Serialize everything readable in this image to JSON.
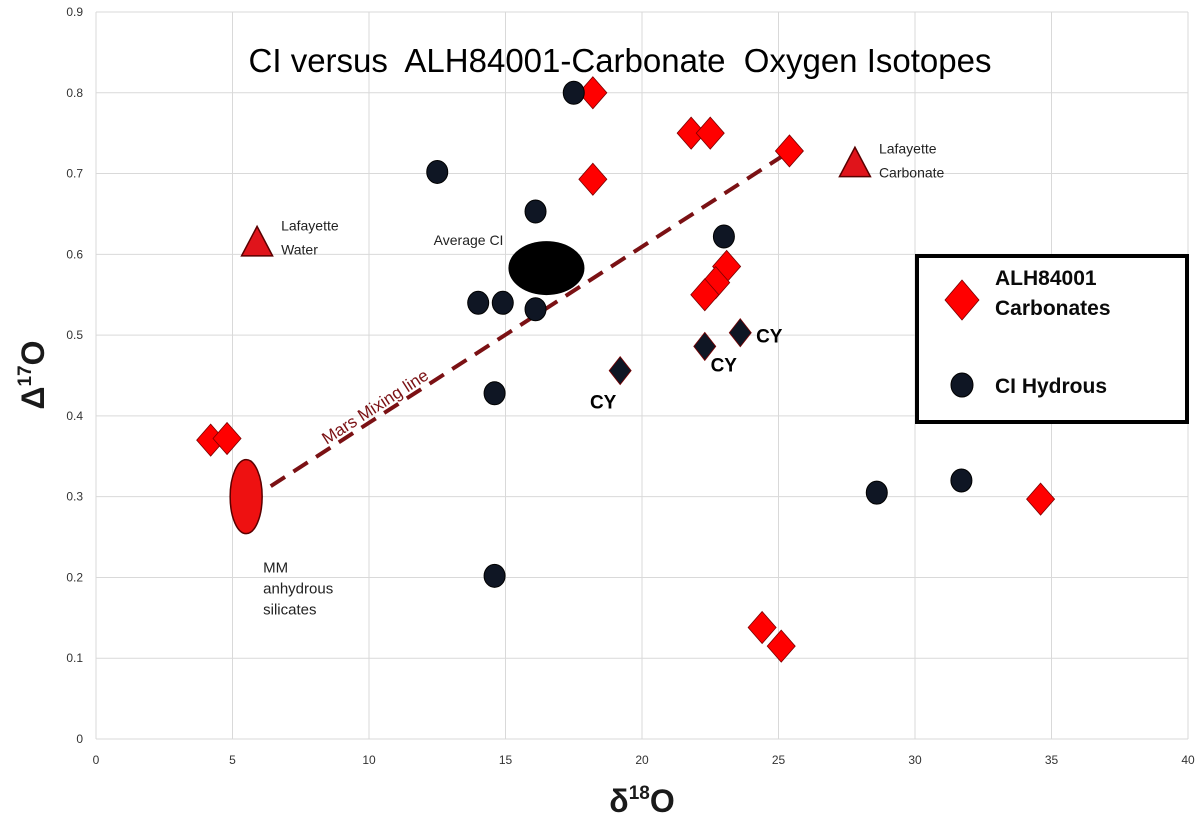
{
  "chart_data": {
    "type": "scatter",
    "title": "CI versus  ALH84001-Carbonate  Oxygen Isotopes",
    "xlabel": {
      "base": "δ",
      "sup": "18",
      "tail": "O"
    },
    "ylabel": {
      "base": "Δ",
      "sup": "17",
      "tail": "O"
    },
    "xlim": [
      0,
      40
    ],
    "ylim": [
      0,
      0.9
    ],
    "x_ticks": [
      0,
      5,
      10,
      15,
      20,
      25,
      30,
      35,
      40
    ],
    "y_ticks": [
      0,
      0.1,
      0.2,
      0.3,
      0.4,
      0.5,
      0.6,
      0.7,
      0.8,
      0.9
    ],
    "colors": {
      "carbonate": "#ff0000",
      "hydrous": "#0f1624",
      "cy": "#0f1624",
      "mixing_line": "#7b1114",
      "triangle": "#e0141b",
      "mm_ellipse": "#ee1111"
    },
    "series": [
      {
        "name": "ALH84001 Carbonates",
        "marker": "diamond",
        "points": [
          {
            "x": 18.2,
            "y": 0.8
          },
          {
            "x": 21.8,
            "y": 0.75
          },
          {
            "x": 22.5,
            "y": 0.75
          },
          {
            "x": 25.4,
            "y": 0.728
          },
          {
            "x": 18.2,
            "y": 0.693
          },
          {
            "x": 23.1,
            "y": 0.585
          },
          {
            "x": 22.7,
            "y": 0.565
          },
          {
            "x": 22.3,
            "y": 0.55
          },
          {
            "x": 4.2,
            "y": 0.37
          },
          {
            "x": 4.8,
            "y": 0.372
          },
          {
            "x": 34.6,
            "y": 0.297
          },
          {
            "x": 24.4,
            "y": 0.138
          },
          {
            "x": 25.1,
            "y": 0.115
          }
        ]
      },
      {
        "name": "CI Hydrous",
        "marker": "circle",
        "points": [
          {
            "x": 17.5,
            "y": 0.8
          },
          {
            "x": 12.5,
            "y": 0.702
          },
          {
            "x": 16.1,
            "y": 0.653
          },
          {
            "x": 23.0,
            "y": 0.622
          },
          {
            "x": 14.0,
            "y": 0.54
          },
          {
            "x": 14.9,
            "y": 0.54
          },
          {
            "x": 16.1,
            "y": 0.532
          },
          {
            "x": 14.6,
            "y": 0.428
          },
          {
            "x": 28.6,
            "y": 0.305
          },
          {
            "x": 31.7,
            "y": 0.32
          },
          {
            "x": 14.6,
            "y": 0.202
          }
        ]
      },
      {
        "name": "CY",
        "marker": "small-diamond",
        "points": [
          {
            "x": 19.2,
            "y": 0.456,
            "label": "CY"
          },
          {
            "x": 22.3,
            "y": 0.486,
            "label": "CY"
          },
          {
            "x": 23.6,
            "y": 0.503,
            "label": "CY"
          }
        ]
      }
    ],
    "special_points": [
      {
        "name": "Average CI",
        "marker": "large-ellipse",
        "x": 16.5,
        "y": 0.583,
        "label": "Average CI"
      },
      {
        "name": "MM anhydrous silicates",
        "marker": "vertical-ellipse",
        "x": 5.5,
        "y": 0.3,
        "label_lines": [
          "MM",
          "anhydrous",
          "silicates"
        ]
      },
      {
        "name": "Lafayette Water",
        "marker": "triangle",
        "x": 5.9,
        "y": 0.612,
        "label_lines": [
          "Lafayette",
          "Water"
        ]
      },
      {
        "name": "Lafayette Carbonate",
        "marker": "triangle",
        "x": 27.8,
        "y": 0.71,
        "label_lines": [
          "Lafayette",
          "Carbonate"
        ]
      }
    ],
    "mixing_line": {
      "label": "Mars Mixing line",
      "from": {
        "x": 6.4,
        "y": 0.313
      },
      "to": {
        "x": 25.3,
        "y": 0.725
      }
    },
    "legend": {
      "placement": "right",
      "entries": [
        {
          "marker": "diamond",
          "label_lines": [
            "ALH84001",
            "Carbonates"
          ]
        },
        {
          "marker": "circle",
          "label_lines": [
            "CI Hydrous"
          ]
        }
      ]
    }
  }
}
